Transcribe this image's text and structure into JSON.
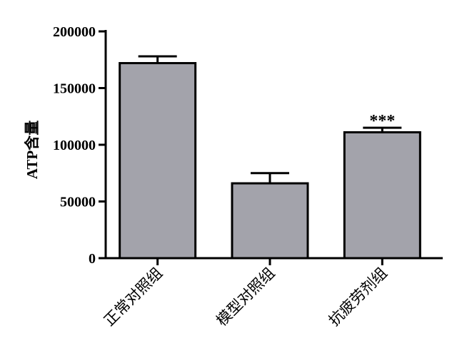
{
  "chart_data": {
    "type": "bar",
    "categories": [
      "正常对照组",
      "模型对照组",
      "抗疲劳剂组"
    ],
    "values": [
      172000,
      66000,
      111000
    ],
    "errors": [
      6000,
      9000,
      4000
    ],
    "annotations": [
      "",
      "",
      "***"
    ],
    "ylabel": "ATP含量",
    "xlabel": "",
    "title": "",
    "ylim": [
      0,
      200000
    ],
    "yticks": [
      0,
      50000,
      100000,
      150000,
      200000
    ],
    "bar_color": "#a3a3ab",
    "edge_color": "#000000",
    "grid": false,
    "legend": "none"
  }
}
